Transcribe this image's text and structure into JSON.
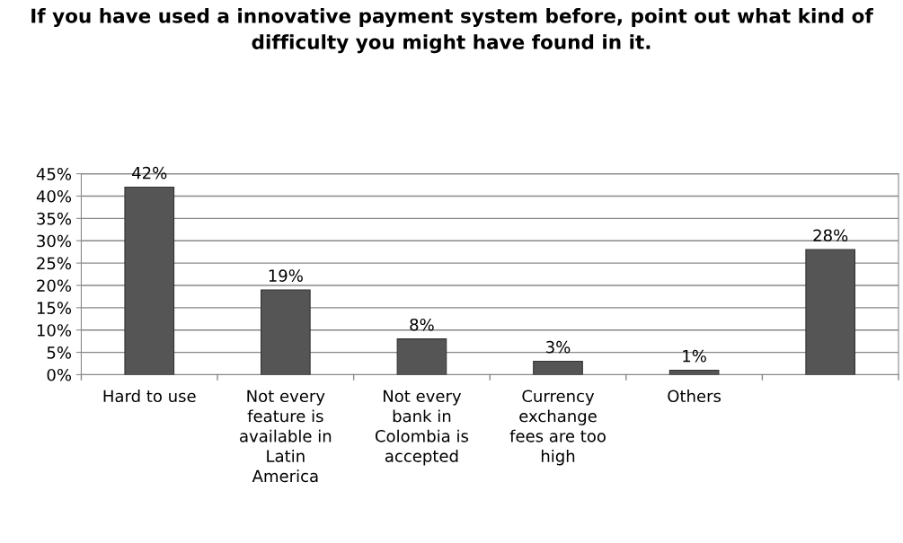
{
  "chart_data": {
    "type": "bar",
    "title": "If you have used a innovative payment system before, point out what kind of difficulty you might have found in it.",
    "categories": [
      "Hard to use",
      "Not every\nfeature is\navailable in\nLatin\nAmerica",
      "Not every\nbank in\nColombia is\naccepted",
      "Currency\nexchange\nfees are too\nhigh",
      "Others",
      null
    ],
    "values": [
      42,
      19,
      8,
      3,
      1,
      28
    ],
    "value_labels": [
      "42%",
      "19%",
      "8%",
      "3%",
      "1%",
      "28%"
    ],
    "color": "#555555",
    "ylim": [
      0,
      45
    ],
    "yticks": [
      {
        "value": 0,
        "label": "0%"
      },
      {
        "value": 5,
        "label": "5%"
      },
      {
        "value": 10,
        "label": "10%"
      },
      {
        "value": 15,
        "label": "15%"
      },
      {
        "value": 20,
        "label": "20%"
      },
      {
        "value": 25,
        "label": "25%"
      },
      {
        "value": 30,
        "label": "30%"
      },
      {
        "value": 35,
        "label": "35%"
      },
      {
        "value": 40,
        "label": "40%"
      },
      {
        "value": 45,
        "label": "45%"
      }
    ],
    "grid": "y",
    "legend": false
  }
}
